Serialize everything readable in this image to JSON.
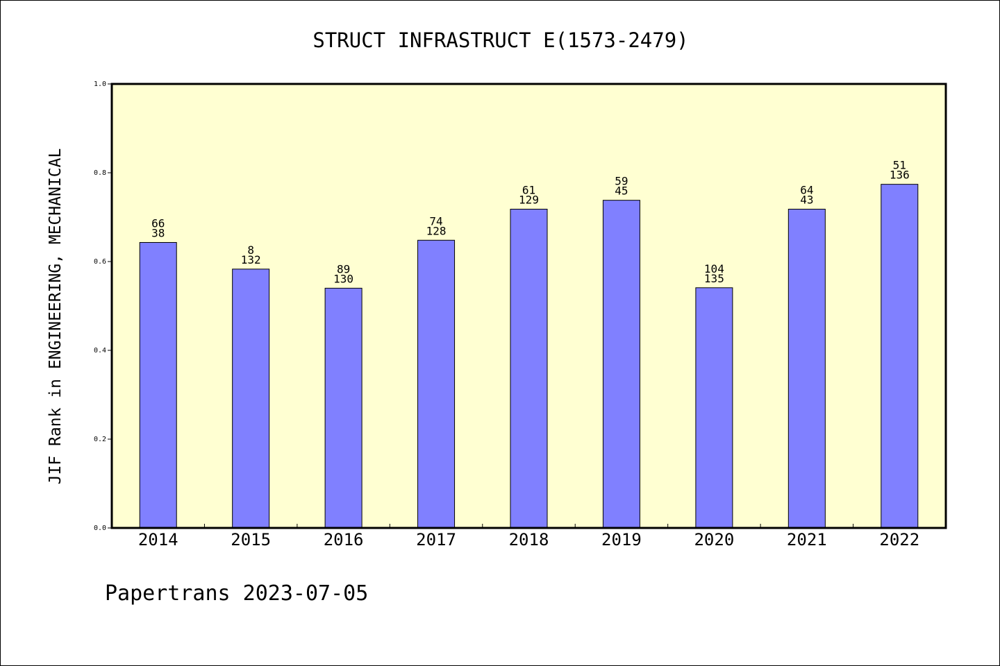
{
  "chart_data": {
    "type": "bar",
    "title": "STRUCT INFRASTRUCT E(1573-2479)",
    "xlabel": "",
    "ylabel": "JIF Rank in ENGINEERING, MECHANICAL",
    "ylim": [
      0,
      1.0
    ],
    "yticks": [
      "0.0",
      "0.2",
      "0.4",
      "0.6",
      "0.8",
      "1.0"
    ],
    "categories": [
      "2014",
      "2015",
      "2016",
      "2017",
      "2018",
      "2019",
      "2020",
      "2021",
      "2022"
    ],
    "values": [
      0.643,
      0.583,
      0.54,
      0.648,
      0.718,
      0.738,
      0.541,
      0.718,
      0.774
    ],
    "rank_labels": [
      [
        "66",
        "38"
      ],
      [
        "8",
        "132"
      ],
      [
        "89",
        "130"
      ],
      [
        "74",
        "128"
      ],
      [
        "61",
        "129"
      ],
      [
        "59",
        "45"
      ],
      [
        "104",
        "135"
      ],
      [
        "64",
        "43"
      ],
      [
        "51",
        "136"
      ]
    ],
    "grid": false,
    "legend": "none",
    "colors": {
      "plot_background": "#ffffd2",
      "bar_fill": "#8080ff",
      "bar_stroke": "#000000"
    }
  },
  "footer": {
    "text": "Papertrans 2023-07-05"
  }
}
